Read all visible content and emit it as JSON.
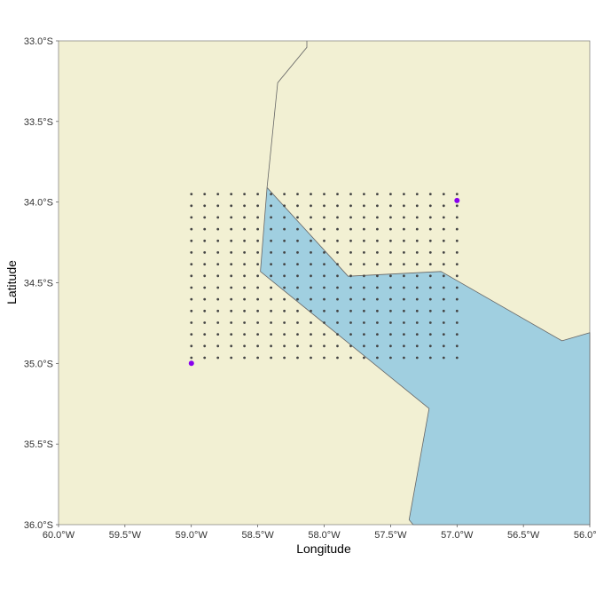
{
  "map": {
    "xlabel": "Longitude",
    "ylabel": "Latitude",
    "xlim": [
      -60.0,
      -56.0
    ],
    "ylim": [
      -36.0,
      -33.0
    ],
    "x_ticks": [
      {
        "value": -60.0,
        "label": "60.0°W"
      },
      {
        "value": -59.5,
        "label": "59.5°W"
      },
      {
        "value": -59.0,
        "label": "59.0°W"
      },
      {
        "value": -58.5,
        "label": "58.5°W"
      },
      {
        "value": -58.0,
        "label": "58.0°W"
      },
      {
        "value": -57.5,
        "label": "57.5°W"
      },
      {
        "value": -57.0,
        "label": "57.0°W"
      },
      {
        "value": -56.5,
        "label": "56.5°W"
      },
      {
        "value": -56.0,
        "label": "56.0°W"
      }
    ],
    "y_ticks": [
      {
        "value": -33.0,
        "label": "33.0°S"
      },
      {
        "value": -33.5,
        "label": "33.5°S"
      },
      {
        "value": -34.0,
        "label": "34.0°S"
      },
      {
        "value": -34.5,
        "label": "34.5°S"
      },
      {
        "value": -35.0,
        "label": "35.0°S"
      },
      {
        "value": -35.5,
        "label": "35.5°S"
      },
      {
        "value": -36.0,
        "label": "36.0°S"
      }
    ],
    "colors": {
      "land": "#f2f0d3",
      "water": "#a0cfe0",
      "outline": "#666666",
      "grid_point": "#444444",
      "corner_point": "#8800ee",
      "text": "#333333",
      "axis_title": "#000000"
    },
    "water_polygon": [
      [
        -58.43,
        -33.91
      ],
      [
        -57.82,
        -34.46
      ],
      [
        -57.12,
        -34.43
      ],
      [
        -56.21,
        -34.86
      ],
      [
        -56.0,
        -34.81
      ],
      [
        -56.0,
        -36.0
      ],
      [
        -57.33,
        -36.0
      ],
      [
        -57.36,
        -35.97
      ],
      [
        -57.21,
        -35.28
      ],
      [
        -58.48,
        -34.43
      ]
    ],
    "border_line": [
      [
        -58.13,
        -33.0
      ],
      [
        -58.13,
        -33.04
      ],
      [
        -58.35,
        -33.26
      ],
      [
        -58.43,
        -33.91
      ]
    ],
    "point_grid": {
      "lon_start": -59.0,
      "lon_end": -57.0,
      "lon_step": 0.1,
      "lat_start": -33.95,
      "lat_end": -34.95,
      "lat_step": 0.0725
    },
    "corner_points": [
      {
        "lon": -59.0,
        "lat": -35.0
      },
      {
        "lon": -57.0,
        "lat": -33.99
      }
    ]
  }
}
